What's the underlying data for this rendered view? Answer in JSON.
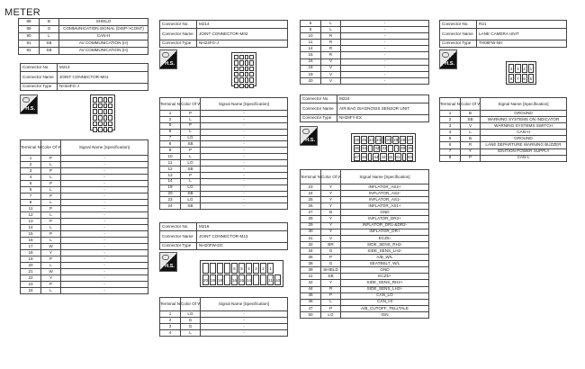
{
  "title": "METER",
  "headers": {
    "terminal": "Terminal No.",
    "color": "Color Of Wire",
    "signal": "Signal Name [Specification]",
    "conn_no": "Connector No.",
    "conn_name": "Connector Name",
    "conn_type": "Connector Type",
    "hs": "H.S."
  },
  "meter_cont": [
    [
      "88",
      "B",
      "SHIELD"
    ],
    [
      "89",
      "G",
      "COMMUNICATION SIGNAL (DISP->CONT)"
    ],
    [
      "90",
      "L",
      "CAN-H"
    ],
    [
      "91",
      "SB",
      "AV COMMUNICATION (H)"
    ],
    [
      "92",
      "SB",
      "AV COMMUNICATION (H)"
    ]
  ],
  "m213": {
    "no": "M213",
    "name": "JOINT CONNECTOR-M01",
    "type": "NH24FG-J",
    "rows": [
      [
        "1",
        "P",
        "-"
      ],
      [
        "2",
        "L",
        "-"
      ],
      [
        "3",
        "P",
        "-"
      ],
      [
        "4",
        "L",
        "-"
      ],
      [
        "5",
        "P",
        "-"
      ],
      [
        "6",
        "L",
        "-"
      ],
      [
        "7",
        "P",
        "-"
      ],
      [
        "8",
        "L",
        "-"
      ],
      [
        "11",
        "P",
        "-"
      ],
      [
        "12",
        "L",
        "-"
      ],
      [
        "13",
        "P",
        "-"
      ],
      [
        "14",
        "L",
        "-"
      ],
      [
        "15",
        "P",
        "-"
      ],
      [
        "16",
        "L",
        "-"
      ],
      [
        "17",
        "W",
        "-"
      ],
      [
        "18",
        "Y",
        "-"
      ],
      [
        "19",
        "P",
        "-"
      ],
      [
        "20",
        "L",
        "-"
      ],
      [
        "21",
        "W",
        "-"
      ],
      [
        "22",
        "Y",
        "-"
      ],
      [
        "23",
        "P",
        "-"
      ],
      [
        "24",
        "L",
        "-"
      ]
    ]
  },
  "m214": {
    "no": "M214",
    "name": "JOINT CONNECTOR-M02",
    "type": "NH24FG-J",
    "rows": [
      [
        "1",
        "P",
        "-"
      ],
      [
        "2",
        "L",
        "-"
      ],
      [
        "5",
        "P",
        "-"
      ],
      [
        "6",
        "L",
        "-"
      ],
      [
        "7",
        "LG",
        "-"
      ],
      [
        "8",
        "SB",
        "-"
      ],
      [
        "9",
        "P",
        "-"
      ],
      [
        "10",
        "L",
        "-"
      ],
      [
        "11",
        "LG",
        "-"
      ],
      [
        "12",
        "SB",
        "-"
      ],
      [
        "13",
        "P",
        "-"
      ],
      [
        "14",
        "L",
        "-"
      ],
      [
        "19",
        "LG",
        "-"
      ],
      [
        "20",
        "SB",
        "-"
      ],
      [
        "23",
        "LG",
        "-"
      ],
      [
        "24",
        "SB",
        "-"
      ]
    ]
  },
  "m216": {
    "no": "M216",
    "name": "JOINT CONNECTOR-M13",
    "type": "NH20FW-DC",
    "pins_top": [
      "",
      "",
      "",
      "",
      "6",
      "5",
      "4",
      "3",
      "2",
      "1"
    ],
    "pins_bottom": [
      "20",
      "19",
      "18",
      "",
      "16",
      "15",
      "14",
      "",
      "",
      "11",
      "10"
    ],
    "rows": [
      [
        "1",
        "LG",
        "-"
      ],
      [
        "2",
        "G",
        "-"
      ],
      [
        "3",
        "G",
        "-"
      ],
      [
        "4",
        "L",
        "-"
      ]
    ]
  },
  "m216_cont": [
    [
      "5",
      "L",
      "-"
    ],
    [
      "6",
      "L",
      "-"
    ],
    [
      "10",
      "R",
      "-"
    ],
    [
      "11",
      "R",
      "-"
    ],
    [
      "14",
      "R",
      "-"
    ],
    [
      "15",
      "R",
      "-"
    ],
    [
      "16",
      "V",
      "-"
    ],
    [
      "18",
      "V",
      "-"
    ],
    [
      "19",
      "V",
      "-"
    ],
    [
      "20",
      "V",
      "-"
    ]
  ],
  "m224": {
    "no": "M224",
    "name": "AIR BAG DIAGNOSIS SENSOR UNIT",
    "type": "NH28FY-EX",
    "pins_top": [
      "26",
      "25",
      "24",
      "23",
      "",
      "30",
      "29",
      "28",
      "27"
    ],
    "pins_mid": [
      "35",
      "34",
      "",
      "32",
      "31",
      "",
      "",
      "39",
      "38"
    ],
    "pins_bot": [
      "47",
      "46",
      "",
      "44",
      "43",
      "42",
      "41",
      "",
      "50"
    ],
    "rows": [
      [
        "23",
        "Y",
        "INFLATOR_AS2+"
      ],
      [
        "24",
        "Y",
        "INFLATOR_AS2-"
      ],
      [
        "25",
        "Y",
        "INFLATOR_AS1-"
      ],
      [
        "26",
        "Y",
        "INFLATOR_AS1+"
      ],
      [
        "27",
        "B",
        "GND"
      ],
      [
        "28",
        "Y",
        "INFLATOR_DR2+"
      ],
      [
        "29",
        "Y",
        "INFLATOR_DR1-&DR2-"
      ],
      [
        "30",
        "Y",
        "INFLATOR_DR+"
      ],
      [
        "31",
        "V",
        "ECZ5-"
      ],
      [
        "32",
        "BR",
        "SIDE_SENS_RH2-"
      ],
      [
        "34",
        "G",
        "SIDE_SENS_LH2-"
      ],
      [
        "35",
        "P",
        "A/B_W/L"
      ],
      [
        "38",
        "G",
        "SEATBELT_W/L"
      ],
      [
        "39",
        "SHIELD",
        "GND"
      ],
      [
        "41",
        "SB",
        "ECZ5+"
      ],
      [
        "42",
        "Y",
        "SIDE_SENS_RH2+"
      ],
      [
        "44",
        "R",
        "SIDE_SENS_LH2+"
      ],
      [
        "45",
        "P",
        "CAN_LO"
      ],
      [
        "46",
        "L",
        "CAN_HI"
      ],
      [
        "47",
        "P",
        "A/B_CUTOFF_TELLTALE"
      ],
      [
        "50",
        "LG",
        "IGN"
      ]
    ]
  },
  "r21": {
    "no": "R21",
    "name": "LANE CAMERA UNIT",
    "type": "TH08FW-NH",
    "pins_top": [
      "4",
      "3",
      "2",
      "1"
    ],
    "pins_bottom": [
      "8",
      "7",
      "6",
      "5"
    ],
    "rows": [
      [
        "1",
        "B",
        "GROUND"
      ],
      [
        "2",
        "SB",
        "WARNING SYSTEMS ON INDICATOR"
      ],
      [
        "3",
        "V",
        "WARNING SYSTEMS SWITCH"
      ],
      [
        "4",
        "L",
        "CAN-H"
      ],
      [
        "5",
        "B",
        "GROUND"
      ],
      [
        "6",
        "R",
        "LANE DEPARTURE WARNING BUZZER"
      ],
      [
        "7",
        "Y",
        "IGNITION POWER SUPPLY"
      ],
      [
        "8",
        "P",
        "CAN-L"
      ]
    ]
  }
}
